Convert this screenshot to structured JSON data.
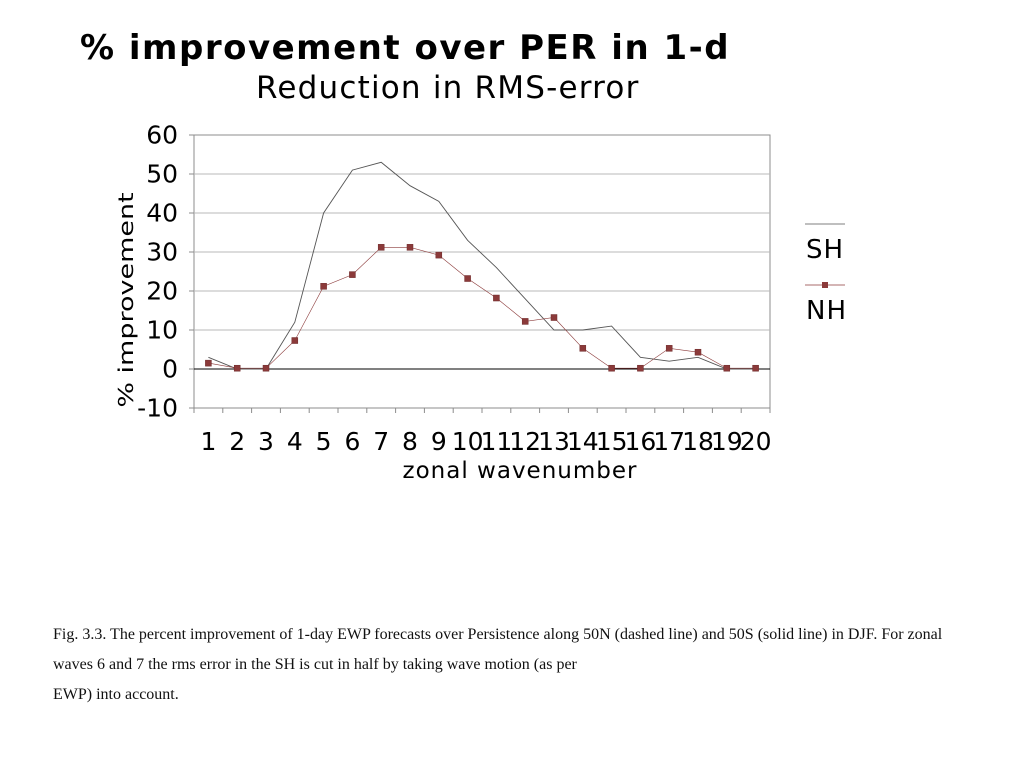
{
  "chart_data": {
    "type": "line",
    "title": "% improvement over PER in 1-d",
    "subtitle": "Reduction in RMS-error",
    "xlabel": "zonal wavenumber",
    "ylabel": "% improvement",
    "categories": [
      "1",
      "2",
      "3",
      "4",
      "5",
      "6",
      "7",
      "8",
      "9",
      "10",
      "11",
      "12",
      "13",
      "14",
      "15",
      "16",
      "17",
      "18",
      "19",
      "20"
    ],
    "ylim": [
      -10,
      60
    ],
    "yticks": [
      "60",
      "50",
      "40",
      "30",
      "20",
      "10",
      "0",
      "-10"
    ],
    "grid": true,
    "legend": "right",
    "series": [
      {
        "name": "SH",
        "color": "#555555",
        "marker": "none",
        "values": [
          3,
          0,
          0,
          12,
          40,
          51,
          53,
          47,
          43,
          33,
          26,
          18,
          10,
          10,
          11,
          3,
          2,
          3,
          0,
          0
        ]
      },
      {
        "name": "NH",
        "color": "#8b3a3a",
        "marker": "square",
        "values": [
          1.5,
          0.2,
          0.2,
          7.3,
          21.2,
          24.2,
          31.2,
          31.2,
          29.2,
          23.2,
          18.2,
          12.2,
          13.2,
          5.3,
          0.2,
          0.2,
          5.3,
          4.3,
          0.2,
          0.2
        ]
      }
    ]
  },
  "caption": {
    "line1": "Fig. 3.3. The percent improvement of 1-day EWP forecasts over Persistence along 50N (dashed line) and 50S (solid line) in DJF. For zonal waves 6 and 7 the rms error in the SH is cut in half by taking wave motion (as per",
    "line2": "EWP) into account."
  }
}
